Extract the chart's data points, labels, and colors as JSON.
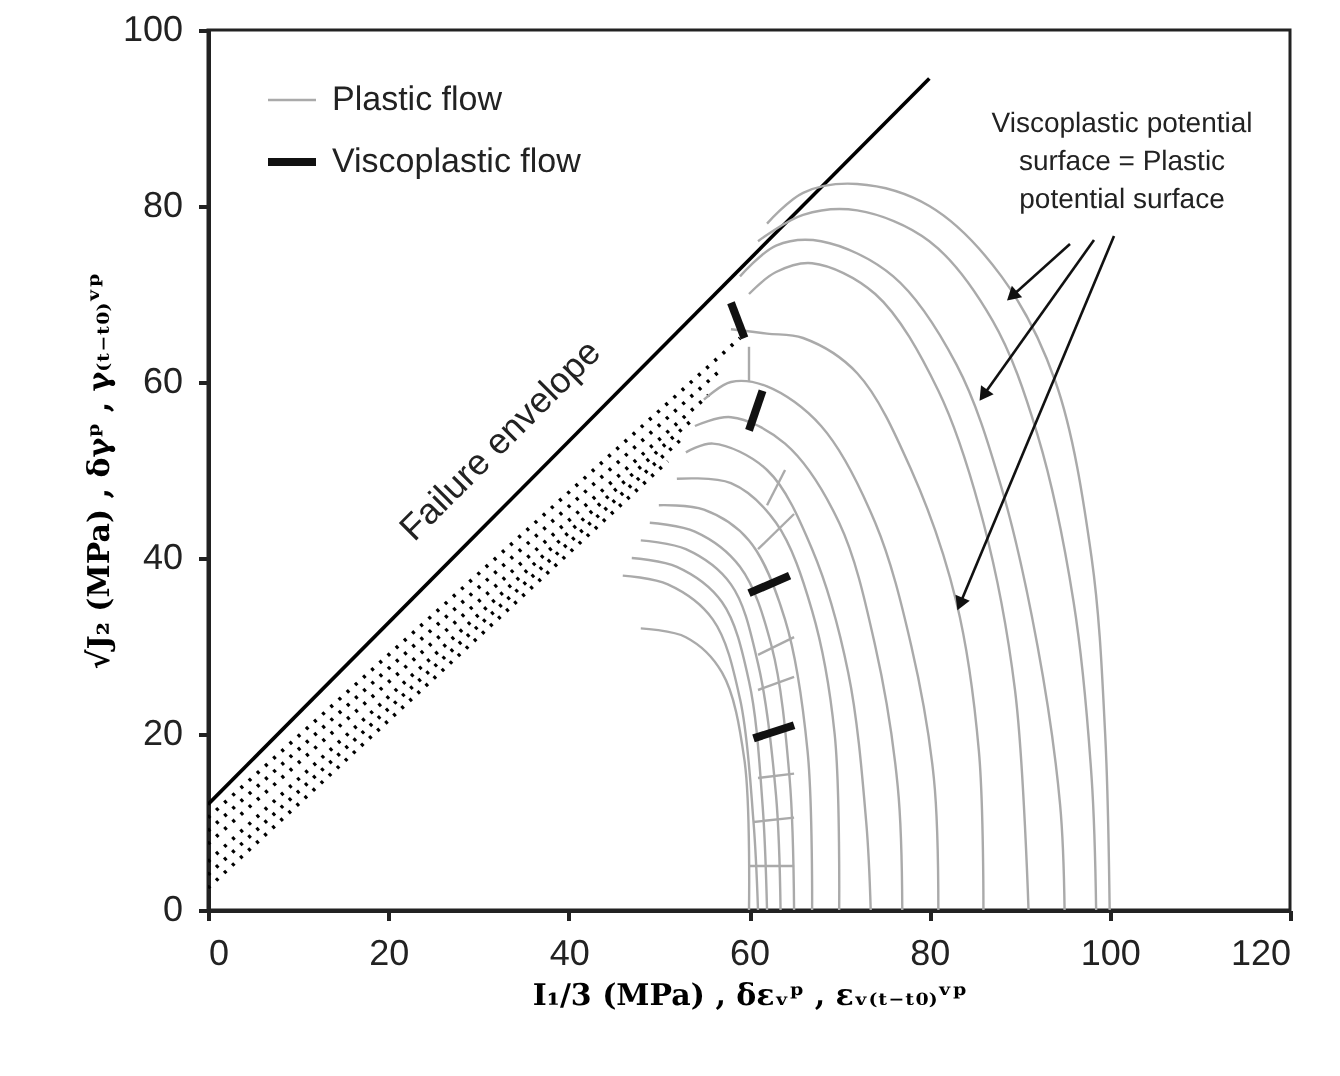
{
  "chart_data": {
    "type": "line",
    "xlabel": "I₁/3 (MPa) , δεᵥᵖ , εᵥ₍ₜ₋ₜ₀₎ᵛᵖ",
    "ylabel": "√J₂ (MPa) , δγᵖ , γ₍ₜ₋ₜ₀₎ᵛᵖ",
    "xlim": [
      0,
      120
    ],
    "ylim": [
      0,
      100
    ],
    "xticks": [
      0,
      20,
      40,
      60,
      80,
      100,
      120
    ],
    "yticks": [
      0,
      20,
      40,
      60,
      80,
      100
    ],
    "grid": false,
    "legend": "top left",
    "annotations": [
      "Failure envelope",
      {
        "text": "Viscoplastic potential surface = Plastic potential surface",
        "x": 86,
        "y": 58.5
      }
    ],
    "series": [
      {
        "color": "#000000",
        "x": [
          0,
          80
        ],
        "values": [
          12,
          94.5
        ]
      },
      {
        "color": "#000000",
        "line_style": "dotted",
        "x": [
          0,
          59
        ],
        "values": [
          10.5,
          65
        ]
      },
      {
        "color": "#000000",
        "line_style": "dotted",
        "x": [
          0,
          57
        ],
        "values": [
          9,
          61.5
        ]
      },
      {
        "color": "#000000",
        "line_style": "dotted",
        "x": [
          0,
          55.5
        ],
        "values": [
          7.5,
          58.5
        ]
      },
      {
        "color": "#000000",
        "line_style": "dotted",
        "x": [
          0,
          54
        ],
        "values": [
          5.5,
          56
        ]
      },
      {
        "color": "#000000",
        "line_style": "dotted",
        "x": [
          0,
          52.5
        ],
        "values": [
          4,
          53.5
        ]
      },
      {
        "color": "#000000",
        "line_style": "dotted",
        "x": [
          0,
          51
        ],
        "values": [
          2.5,
          51
        ]
      },
      {
        "color": "#aaaaaa",
        "x": [
          62,
          66,
          72,
          80,
          88,
          94,
          98,
          99.5,
          100
        ],
        "values": [
          78,
          81.5,
          82.5,
          80,
          72,
          60,
          40,
          20,
          0
        ]
      },
      {
        "color": "#aaaaaa",
        "x": [
          61,
          66,
          72,
          80,
          87,
          92,
          96,
          98,
          98.5
        ],
        "values": [
          76,
          79,
          79.5,
          76,
          67,
          54,
          35,
          15,
          0
        ]
      },
      {
        "color": "#aaaaaa",
        "x": [
          59,
          63,
          68,
          76,
          83,
          88,
          92,
          94.5,
          95
        ],
        "values": [
          72,
          75.5,
          76,
          72,
          62,
          48,
          30,
          12,
          0
        ]
      },
      {
        "color": "#aaaaaa",
        "x": [
          60,
          63,
          67,
          74,
          81,
          86,
          89.5,
          91
        ],
        "values": [
          70,
          72.5,
          73.5,
          70,
          59,
          44,
          25,
          0
        ]
      },
      {
        "color": "#aaaaaa",
        "x": [
          58,
          62,
          66,
          72,
          78,
          83,
          85.5,
          86
        ],
        "values": [
          66,
          65.5,
          65,
          61,
          50,
          35,
          18,
          0
        ]
      },
      {
        "color": "#aaaaaa",
        "x": [
          55,
          58,
          62,
          68,
          74,
          78,
          80.5,
          81
        ],
        "values": [
          58,
          60,
          59.5,
          55,
          44,
          30,
          15,
          0
        ]
      },
      {
        "color": "#aaaaaa",
        "x": [
          54,
          58,
          64,
          70,
          74,
          76.5,
          77
        ],
        "values": [
          55,
          56,
          53,
          44,
          30,
          14,
          0
        ]
      },
      {
        "color": "#aaaaaa",
        "x": [
          53,
          56,
          62,
          67,
          71,
          73,
          73.5
        ],
        "values": [
          52,
          53,
          50,
          41,
          27,
          10,
          0
        ]
      },
      {
        "color": "#aaaaaa",
        "x": [
          52,
          58,
          63,
          67,
          69.5,
          70
        ],
        "values": [
          49,
          48.5,
          44,
          34,
          20,
          0
        ]
      },
      {
        "color": "#aaaaaa",
        "x": [
          50,
          55,
          60,
          64,
          66.5,
          67
        ],
        "values": [
          46,
          45.5,
          42,
          33,
          18,
          0
        ]
      },
      {
        "color": "#aaaaaa",
        "x": [
          49,
          54,
          59,
          62.5,
          64.5,
          65
        ],
        "values": [
          44,
          43,
          39,
          30,
          15,
          0
        ]
      },
      {
        "color": "#aaaaaa",
        "x": [
          48,
          53,
          58,
          61,
          63,
          63.5
        ],
        "values": [
          42,
          41,
          37,
          28,
          13,
          0
        ]
      },
      {
        "color": "#aaaaaa",
        "x": [
          47,
          52,
          57,
          60,
          61.5,
          62
        ],
        "values": [
          40,
          39,
          35,
          26,
          12,
          0
        ]
      },
      {
        "color": "#aaaaaa",
        "x": [
          46,
          51,
          56,
          59,
          60.5,
          61
        ],
        "values": [
          38,
          37,
          33,
          24,
          10,
          0
        ]
      },
      {
        "color": "#aaaaaa",
        "x": [
          48,
          53,
          57,
          59.5,
          60
        ],
        "values": [
          32,
          31,
          27,
          17,
          0
        ]
      },
      {
        "name": "Plastic flow",
        "color": "#aaaaaa",
        "x": [
          60,
          65
        ],
        "values": [
          5,
          5
        ]
      },
      {
        "color": "#aaaaaa",
        "x": [
          60.5,
          65
        ],
        "values": [
          10,
          10.5
        ]
      },
      {
        "color": "#aaaaaa",
        "x": [
          61,
          65
        ],
        "values": [
          15,
          15.5
        ]
      },
      {
        "color": "#aaaaaa",
        "x": [
          61,
          65
        ],
        "values": [
          25,
          26.5
        ]
      },
      {
        "color": "#aaaaaa",
        "x": [
          61,
          65
        ],
        "values": [
          29,
          31
        ]
      },
      {
        "color": "#aaaaaa",
        "x": [
          61,
          65
        ],
        "values": [
          41,
          45
        ]
      },
      {
        "color": "#aaaaaa",
        "x": [
          62,
          64
        ],
        "values": [
          46,
          50
        ]
      },
      {
        "color": "#aaaaaa",
        "x": [
          60,
          60
        ],
        "values": [
          60,
          64
        ]
      },
      {
        "name": "Viscoplastic flow",
        "color": "#111111",
        "x": [
          58,
          59.5
        ],
        "values": [
          69,
          65
        ]
      },
      {
        "color": "#111111",
        "x": [
          60,
          61.5
        ],
        "values": [
          54.5,
          59
        ]
      },
      {
        "color": "#111111",
        "x": [
          60,
          64.5
        ],
        "values": [
          36,
          38
        ]
      },
      {
        "color": "#111111",
        "x": [
          60.5,
          65
        ],
        "values": [
          19.5,
          21
        ]
      }
    ]
  }
}
